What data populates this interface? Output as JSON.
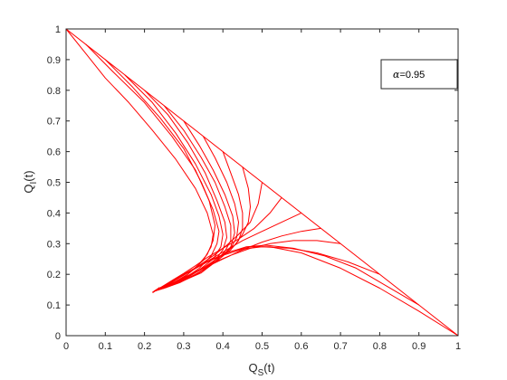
{
  "chart_data": {
    "type": "line",
    "xlabel": "Q_S(t)",
    "xlabel_main": "Q",
    "xlabel_sub": "S",
    "xlabel_tail": "(t)",
    "ylabel": "Q_I(t)",
    "ylabel_main": "Q",
    "ylabel_sub": "I",
    "ylabel_tail": "(t)",
    "xlim": [
      0,
      1
    ],
    "ylim": [
      0,
      1
    ],
    "xticks": [
      "0",
      "0.1",
      "0.2",
      "0.3",
      "0.4",
      "0.5",
      "0.6",
      "0.7",
      "0.8",
      "0.9",
      "1"
    ],
    "yticks": [
      "0",
      "0.1",
      "0.2",
      "0.3",
      "0.4",
      "0.5",
      "0.6",
      "0.7",
      "0.8",
      "0.9",
      "1"
    ],
    "grid": false,
    "legend": {
      "position": "top-right",
      "alpha_symbol": "α",
      "alpha_value": "=0.95"
    },
    "line_color": "#ff0000",
    "equilibrium": [
      0.225,
      0.145
    ],
    "series": [
      {
        "x": [
          1.0,
          0.0
        ],
        "y": [
          0.0,
          1.0
        ]
      },
      {
        "x": [
          0.0,
          0.05,
          0.1,
          0.16,
          0.22,
          0.28,
          0.33,
          0.36,
          0.375,
          0.37,
          0.35,
          0.31,
          0.27,
          0.225
        ],
        "y": [
          1.0,
          0.92,
          0.84,
          0.76,
          0.67,
          0.575,
          0.48,
          0.4,
          0.33,
          0.29,
          0.245,
          0.2,
          0.17,
          0.145
        ]
      },
      {
        "x": [
          0.05,
          0.12,
          0.2,
          0.27,
          0.33,
          0.365,
          0.38,
          0.375,
          0.36,
          0.33,
          0.3,
          0.265,
          0.225
        ],
        "y": [
          0.95,
          0.86,
          0.76,
          0.65,
          0.54,
          0.44,
          0.36,
          0.31,
          0.265,
          0.22,
          0.19,
          0.165,
          0.145
        ]
      },
      {
        "x": [
          0.1,
          0.17,
          0.24,
          0.3,
          0.345,
          0.375,
          0.39,
          0.385,
          0.37,
          0.34,
          0.3,
          0.26,
          0.225
        ],
        "y": [
          0.9,
          0.81,
          0.71,
          0.61,
          0.5,
          0.41,
          0.34,
          0.3,
          0.26,
          0.22,
          0.185,
          0.16,
          0.145
        ]
      },
      {
        "x": [
          0.15,
          0.22,
          0.28,
          0.33,
          0.37,
          0.39,
          0.4,
          0.395,
          0.375,
          0.34,
          0.3,
          0.26,
          0.225
        ],
        "y": [
          0.85,
          0.76,
          0.66,
          0.56,
          0.46,
          0.39,
          0.33,
          0.29,
          0.25,
          0.215,
          0.185,
          0.16,
          0.145
        ]
      },
      {
        "x": [
          0.2,
          0.26,
          0.31,
          0.355,
          0.385,
          0.405,
          0.41,
          0.4,
          0.38,
          0.345,
          0.3,
          0.26,
          0.225
        ],
        "y": [
          0.8,
          0.72,
          0.63,
          0.53,
          0.44,
          0.37,
          0.32,
          0.28,
          0.245,
          0.21,
          0.18,
          0.16,
          0.145
        ]
      },
      {
        "x": [
          0.25,
          0.3,
          0.345,
          0.38,
          0.405,
          0.42,
          0.42,
          0.405,
          0.38,
          0.345,
          0.3,
          0.26,
          0.225
        ],
        "y": [
          0.75,
          0.67,
          0.58,
          0.5,
          0.42,
          0.36,
          0.31,
          0.275,
          0.24,
          0.205,
          0.18,
          0.16,
          0.145
        ]
      },
      {
        "x": [
          0.3,
          0.34,
          0.375,
          0.405,
          0.425,
          0.43,
          0.42,
          0.4,
          0.37,
          0.33,
          0.29,
          0.255,
          0.225
        ],
        "y": [
          0.7,
          0.62,
          0.54,
          0.46,
          0.39,
          0.335,
          0.29,
          0.26,
          0.23,
          0.2,
          0.175,
          0.158,
          0.145
        ]
      },
      {
        "x": [
          0.35,
          0.38,
          0.41,
          0.43,
          0.44,
          0.435,
          0.42,
          0.395,
          0.365,
          0.33,
          0.29,
          0.255,
          0.225
        ],
        "y": [
          0.65,
          0.58,
          0.5,
          0.43,
          0.37,
          0.32,
          0.285,
          0.255,
          0.225,
          0.198,
          0.174,
          0.157,
          0.145
        ]
      },
      {
        "x": [
          0.4,
          0.42,
          0.44,
          0.45,
          0.45,
          0.44,
          0.42,
          0.39,
          0.36,
          0.325,
          0.29,
          0.255,
          0.225
        ],
        "y": [
          0.6,
          0.53,
          0.46,
          0.4,
          0.35,
          0.31,
          0.28,
          0.25,
          0.222,
          0.196,
          0.173,
          0.157,
          0.145
        ]
      },
      {
        "x": [
          0.45,
          0.465,
          0.47,
          0.465,
          0.45,
          0.43,
          0.4,
          0.37,
          0.34,
          0.31,
          0.28,
          0.25,
          0.225
        ],
        "y": [
          0.55,
          0.48,
          0.42,
          0.37,
          0.33,
          0.295,
          0.265,
          0.238,
          0.213,
          0.19,
          0.17,
          0.155,
          0.145
        ]
      },
      {
        "x": [
          0.5,
          0.49,
          0.47,
          0.44,
          0.41,
          0.38,
          0.35,
          0.32,
          0.29,
          0.265,
          0.245,
          0.225
        ],
        "y": [
          0.5,
          0.43,
          0.37,
          0.33,
          0.295,
          0.265,
          0.238,
          0.213,
          0.19,
          0.172,
          0.157,
          0.145
        ]
      },
      {
        "x": [
          0.55,
          0.52,
          0.48,
          0.44,
          0.4,
          0.36,
          0.33,
          0.3,
          0.27,
          0.245,
          0.225
        ],
        "y": [
          0.45,
          0.4,
          0.35,
          0.315,
          0.285,
          0.255,
          0.228,
          0.203,
          0.18,
          0.16,
          0.145
        ]
      },
      {
        "x": [
          0.6,
          0.55,
          0.5,
          0.45,
          0.41,
          0.37,
          0.335,
          0.3,
          0.27,
          0.245,
          0.225
        ],
        "y": [
          0.4,
          0.37,
          0.34,
          0.31,
          0.28,
          0.25,
          0.225,
          0.2,
          0.178,
          0.16,
          0.145
        ]
      },
      {
        "x": [
          0.65,
          0.6,
          0.55,
          0.5,
          0.45,
          0.4,
          0.36,
          0.32,
          0.285,
          0.255,
          0.225
        ],
        "y": [
          0.35,
          0.34,
          0.325,
          0.305,
          0.28,
          0.25,
          0.225,
          0.2,
          0.178,
          0.16,
          0.145
        ]
      },
      {
        "x": [
          0.7,
          0.64,
          0.58,
          0.52,
          0.47,
          0.42,
          0.37,
          0.33,
          0.29,
          0.255,
          0.225
        ],
        "y": [
          0.3,
          0.31,
          0.31,
          0.3,
          0.285,
          0.262,
          0.235,
          0.208,
          0.183,
          0.162,
          0.145
        ]
      },
      {
        "x": [
          0.8,
          0.72,
          0.64,
          0.57,
          0.5,
          0.45,
          0.4,
          0.35,
          0.3,
          0.26,
          0.225
        ],
        "y": [
          0.2,
          0.24,
          0.27,
          0.285,
          0.29,
          0.282,
          0.262,
          0.235,
          0.2,
          0.17,
          0.145
        ]
      },
      {
        "x": [
          0.9,
          0.82,
          0.74,
          0.66,
          0.58,
          0.51,
          0.46,
          0.41,
          0.36,
          0.31,
          0.265,
          0.225
        ],
        "y": [
          0.1,
          0.16,
          0.22,
          0.26,
          0.285,
          0.295,
          0.29,
          0.27,
          0.24,
          0.205,
          0.17,
          0.145
        ]
      },
      {
        "x": [
          1.0,
          0.9,
          0.8,
          0.7,
          0.6,
          0.52,
          0.47,
          0.42,
          0.37,
          0.32,
          0.27,
          0.225
        ],
        "y": [
          0.0,
          0.08,
          0.155,
          0.22,
          0.27,
          0.29,
          0.29,
          0.275,
          0.248,
          0.212,
          0.175,
          0.145
        ]
      }
    ]
  }
}
